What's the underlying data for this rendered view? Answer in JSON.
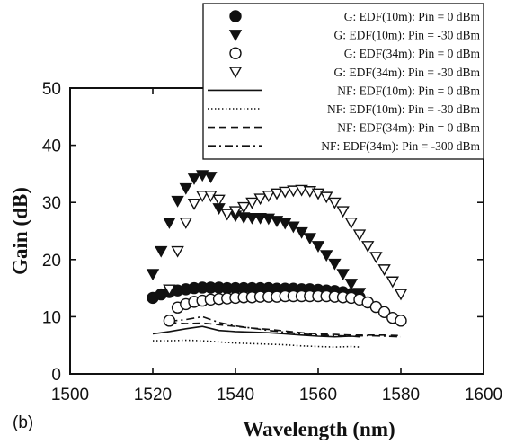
{
  "chart_data": {
    "type": "scatter",
    "xlabel": "Wavelength (nm)",
    "ylabel": "Gain (dB)",
    "panel_label": "(b)",
    "xlim": [
      1500,
      1600
    ],
    "ylim": [
      0,
      50
    ],
    "x_ticks": [
      "1500",
      "1520",
      "1540",
      "1560",
      "1580",
      "1600"
    ],
    "y_ticks": [
      "0",
      "10",
      "20",
      "30",
      "40",
      "50"
    ],
    "grid": false,
    "legend_position": "top-right",
    "series": [
      {
        "name": "G: EDF(10m): Pin = 0 dBm",
        "kind": "marker",
        "marker": "filled-circle",
        "x": [
          1520,
          1522,
          1524,
          1526,
          1528,
          1530,
          1532,
          1534,
          1536,
          1538,
          1540,
          1542,
          1544,
          1546,
          1548,
          1550,
          1552,
          1554,
          1556,
          1558,
          1560,
          1562,
          1564,
          1566,
          1568,
          1570
        ],
        "y": [
          13.3,
          13.9,
          14.3,
          14.6,
          14.8,
          15.0,
          15.1,
          15.1,
          15.1,
          15.0,
          15.0,
          15.0,
          15.0,
          15.0,
          15.0,
          14.9,
          14.9,
          14.9,
          14.8,
          14.8,
          14.7,
          14.6,
          14.5,
          14.3,
          14.0,
          13.4
        ]
      },
      {
        "name": "G: EDF(10m): Pin = -30 dBm",
        "kind": "marker",
        "marker": "filled-triangle-down",
        "x": [
          1520,
          1522,
          1524,
          1526,
          1528,
          1530,
          1532,
          1534,
          1536,
          1538,
          1540,
          1542,
          1544,
          1546,
          1548,
          1550,
          1552,
          1554,
          1556,
          1558,
          1560,
          1562,
          1564,
          1566,
          1568,
          1570
        ],
        "y": [
          17.5,
          21.5,
          26.5,
          30.3,
          32.5,
          34.2,
          34.8,
          34.5,
          29.0,
          28.0,
          27.7,
          27.4,
          27.3,
          27.3,
          27.2,
          26.8,
          26.4,
          25.8,
          24.8,
          23.8,
          22.4,
          20.8,
          19.3,
          17.5,
          15.8,
          14.2
        ]
      },
      {
        "name": "G: EDF(34m): Pin = 0 dBm",
        "kind": "marker",
        "marker": "open-circle",
        "x": [
          1524,
          1526,
          1528,
          1530,
          1532,
          1534,
          1536,
          1538,
          1540,
          1542,
          1544,
          1546,
          1548,
          1550,
          1552,
          1554,
          1556,
          1558,
          1560,
          1562,
          1564,
          1566,
          1568,
          1570,
          1572,
          1574,
          1576,
          1578,
          1580
        ],
        "y": [
          9.3,
          11.6,
          12.2,
          12.6,
          12.8,
          13.0,
          13.1,
          13.2,
          13.3,
          13.4,
          13.4,
          13.5,
          13.5,
          13.5,
          13.6,
          13.6,
          13.6,
          13.6,
          13.6,
          13.6,
          13.5,
          13.4,
          13.3,
          13.0,
          12.5,
          11.7,
          10.8,
          9.8,
          9.3
        ]
      },
      {
        "name": "G: EDF(34m): Pin = -30 dBm",
        "kind": "marker",
        "marker": "open-triangle-down",
        "x": [
          1524,
          1526,
          1528,
          1530,
          1532,
          1534,
          1536,
          1538,
          1540,
          1542,
          1544,
          1546,
          1548,
          1550,
          1552,
          1554,
          1556,
          1558,
          1560,
          1562,
          1564,
          1566,
          1568,
          1570,
          1572,
          1574,
          1576,
          1578,
          1580
        ],
        "y": [
          14.8,
          21.5,
          26.5,
          29.8,
          31.2,
          31.2,
          30.5,
          28.0,
          28.5,
          29.2,
          30.0,
          30.7,
          31.2,
          31.6,
          31.9,
          32.1,
          32.2,
          32.0,
          31.6,
          31.0,
          30.0,
          28.5,
          26.5,
          24.4,
          22.4,
          20.5,
          18.3,
          16.2,
          14.0
        ]
      },
      {
        "name": "NF: EDF(10m): Pin = 0 dBm",
        "kind": "line",
        "dash": "solid",
        "x": [
          1520,
          1524,
          1528,
          1532,
          1536,
          1540,
          1544,
          1548,
          1552,
          1556,
          1560,
          1564,
          1568,
          1570
        ],
        "y": [
          7.0,
          7.4,
          7.9,
          8.3,
          7.6,
          7.4,
          7.3,
          7.2,
          7.0,
          6.8,
          6.6,
          6.5,
          6.6,
          6.5
        ]
      },
      {
        "name": "NF: EDF(10m): Pin = -30 dBm",
        "kind": "line",
        "dash": "dotted",
        "x": [
          1520,
          1524,
          1528,
          1532,
          1536,
          1540,
          1544,
          1548,
          1552,
          1556,
          1560,
          1564,
          1568,
          1570
        ],
        "y": [
          5.8,
          5.8,
          5.9,
          5.8,
          5.6,
          5.4,
          5.3,
          5.2,
          5.1,
          4.9,
          4.8,
          4.7,
          4.8,
          4.7
        ]
      },
      {
        "name": "NF: EDF(34m): Pin = 0 dBm",
        "kind": "line",
        "dash": "dashed",
        "x": [
          1524,
          1528,
          1532,
          1536,
          1540,
          1544,
          1548,
          1552,
          1556,
          1560,
          1564,
          1568,
          1572,
          1576,
          1580
        ],
        "y": [
          9.0,
          8.8,
          8.9,
          8.6,
          8.3,
          8.0,
          7.8,
          7.5,
          7.2,
          7.0,
          6.9,
          6.8,
          6.8,
          6.8,
          6.7
        ]
      },
      {
        "name": "NF: EDF(34m): Pin = -300 dBm",
        "kind": "line",
        "dash": "dashdot",
        "x": [
          1524,
          1528,
          1532,
          1536,
          1540,
          1544,
          1548,
          1552,
          1556,
          1560,
          1564,
          1568,
          1572,
          1576,
          1580
        ],
        "y": [
          9.2,
          9.5,
          10.0,
          9.0,
          8.4,
          8.0,
          7.6,
          7.3,
          7.0,
          6.8,
          6.7,
          6.6,
          6.7,
          6.6,
          6.5
        ]
      }
    ]
  }
}
